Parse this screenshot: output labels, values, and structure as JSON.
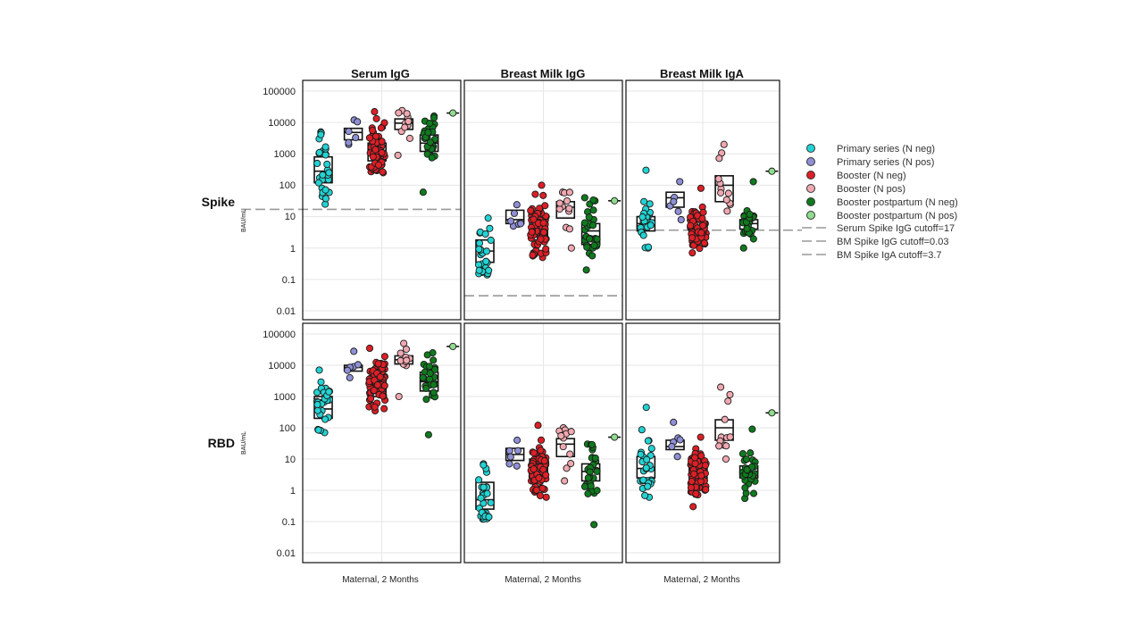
{
  "chart_data": {
    "type": "scatter",
    "y_scale": "log10",
    "ylim": [
      0.005,
      200000
    ],
    "grid": true,
    "legend_position": "right",
    "column_titles": [
      "Serum IgG",
      "Breast Milk IgG",
      "Breast Milk IgA"
    ],
    "row_titles": [
      "Spike",
      "RBD"
    ],
    "y_unit": "BAU/mL",
    "x_label": "Maternal, 2 Months",
    "y_ticks": [
      "0.01",
      "0.1",
      "1",
      "10",
      "100",
      "1000",
      "10000",
      "100000"
    ],
    "groups": [
      {
        "name": "Primary series (N neg)",
        "color": "#22d3d3"
      },
      {
        "name": "Primary series (N pos)",
        "color": "#8f8fd6"
      },
      {
        "name": "Booster (N neg)",
        "color": "#dd1f26"
      },
      {
        "name": "Booster (N pos)",
        "color": "#f0a8b0"
      },
      {
        "name": "Booster postpartum (N neg)",
        "color": "#0f7a1e"
      },
      {
        "name": "Booster postpartum (N pos)",
        "color": "#8fdc8f"
      }
    ],
    "cutoffs": [
      {
        "label": "Serum Spike IgG cutoff=17",
        "value": 17,
        "panel": [
          0,
          0
        ],
        "color": "#999999"
      },
      {
        "label": "BM Spike IgG cutoff=0.03",
        "value": 0.03,
        "panel": [
          0,
          1
        ],
        "color": "#999999"
      },
      {
        "label": "BM Spike IgA cutoff=3.7",
        "value": 3.7,
        "panel": [
          0,
          2
        ],
        "color": "#999999"
      }
    ],
    "panels": [
      {
        "row": "Spike",
        "col": "Serum IgG",
        "groups": [
          {
            "n": 28,
            "q1": 120,
            "median": 280,
            "q3": 800,
            "min": 25,
            "max": 5000
          },
          {
            "n": 6,
            "q1": 2800,
            "median": 4800,
            "q3": 6500,
            "min": 2000,
            "max": 12000
          },
          {
            "n": 70,
            "q1": 600,
            "median": 1200,
            "q3": 2200,
            "min": 250,
            "max": 22000
          },
          {
            "n": 12,
            "q1": 6000,
            "median": 9500,
            "q3": 13000,
            "min": 900,
            "max": 24000
          },
          {
            "n": 30,
            "q1": 1200,
            "median": 2200,
            "q3": 4000,
            "min": 60,
            "max": 16000
          },
          {
            "n": 1,
            "q1": 20000,
            "median": 20000,
            "q3": 20000,
            "min": 20000,
            "max": 20000
          }
        ]
      },
      {
        "row": "Spike",
        "col": "Breast Milk IgG",
        "groups": [
          {
            "n": 28,
            "q1": 0.35,
            "median": 0.8,
            "q3": 1.8,
            "min": 0.14,
            "max": 9
          },
          {
            "n": 6,
            "q1": 6,
            "median": 8,
            "q3": 16,
            "min": 5,
            "max": 24
          },
          {
            "n": 70,
            "q1": 1.8,
            "median": 4,
            "q3": 9,
            "min": 0.5,
            "max": 100
          },
          {
            "n": 12,
            "q1": 9,
            "median": 20,
            "q3": 30,
            "min": 1,
            "max": 60
          },
          {
            "n": 30,
            "q1": 1.3,
            "median": 3.5,
            "q3": 6,
            "min": 0.2,
            "max": 40
          },
          {
            "n": 1,
            "q1": 32,
            "median": 32,
            "q3": 32,
            "min": 32,
            "max": 32
          }
        ]
      },
      {
        "row": "Spike",
        "col": "Breast Milk IgA",
        "groups": [
          {
            "n": 28,
            "q1": 3.5,
            "median": 6,
            "q3": 10,
            "min": 1,
            "max": 300
          },
          {
            "n": 6,
            "q1": 20,
            "median": 40,
            "q3": 60,
            "min": 8,
            "max": 130
          },
          {
            "n": 70,
            "q1": 2.5,
            "median": 4,
            "q3": 7,
            "min": 0.7,
            "max": 80
          },
          {
            "n": 12,
            "q1": 30,
            "median": 100,
            "q3": 200,
            "min": 15,
            "max": 2000
          },
          {
            "n": 30,
            "q1": 4,
            "median": 6,
            "q3": 8,
            "min": 1,
            "max": 130
          },
          {
            "n": 1,
            "q1": 280,
            "median": 280,
            "q3": 280,
            "min": 280,
            "max": 280
          }
        ]
      },
      {
        "row": "RBD",
        "col": "Serum IgG",
        "groups": [
          {
            "n": 28,
            "q1": 200,
            "median": 400,
            "q3": 1000,
            "min": 70,
            "max": 7000
          },
          {
            "n": 6,
            "q1": 6500,
            "median": 8500,
            "q3": 10000,
            "min": 4000,
            "max": 28000
          },
          {
            "n": 70,
            "q1": 1000,
            "median": 2200,
            "q3": 4000,
            "min": 350,
            "max": 35000
          },
          {
            "n": 12,
            "q1": 11000,
            "median": 15000,
            "q3": 20000,
            "min": 1000,
            "max": 50000
          },
          {
            "n": 30,
            "q1": 1500,
            "median": 3000,
            "q3": 6000,
            "min": 60,
            "max": 25000
          },
          {
            "n": 1,
            "q1": 40000,
            "median": 40000,
            "q3": 40000,
            "min": 40000,
            "max": 40000
          }
        ]
      },
      {
        "row": "RBD",
        "col": "Breast Milk IgG",
        "groups": [
          {
            "n": 28,
            "q1": 0.25,
            "median": 0.5,
            "q3": 1.8,
            "min": 0.12,
            "max": 7
          },
          {
            "n": 6,
            "q1": 9,
            "median": 14,
            "q3": 22,
            "min": 6,
            "max": 40
          },
          {
            "n": 70,
            "q1": 2.5,
            "median": 4.5,
            "q3": 10,
            "min": 0.6,
            "max": 120
          },
          {
            "n": 12,
            "q1": 12,
            "median": 30,
            "q3": 45,
            "min": 2,
            "max": 100
          },
          {
            "n": 30,
            "q1": 2,
            "median": 4,
            "q3": 7,
            "min": 0.08,
            "max": 30
          },
          {
            "n": 1,
            "q1": 50,
            "median": 50,
            "q3": 50,
            "min": 50,
            "max": 50
          }
        ]
      },
      {
        "row": "RBD",
        "col": "Breast Milk IgA",
        "groups": [
          {
            "n": 28,
            "q1": 2.5,
            "median": 5,
            "q3": 12,
            "min": 0.6,
            "max": 450
          },
          {
            "n": 6,
            "q1": 20,
            "median": 25,
            "q3": 40,
            "min": 12,
            "max": 150
          },
          {
            "n": 70,
            "q1": 2,
            "median": 3.5,
            "q3": 6,
            "min": 0.3,
            "max": 50
          },
          {
            "n": 12,
            "q1": 40,
            "median": 100,
            "q3": 180,
            "min": 10,
            "max": 2000
          },
          {
            "n": 30,
            "q1": 2.5,
            "median": 4,
            "q3": 6,
            "min": 0.55,
            "max": 90
          },
          {
            "n": 1,
            "q1": 300,
            "median": 300,
            "q3": 300,
            "min": 300,
            "max": 300
          }
        ]
      }
    ]
  }
}
